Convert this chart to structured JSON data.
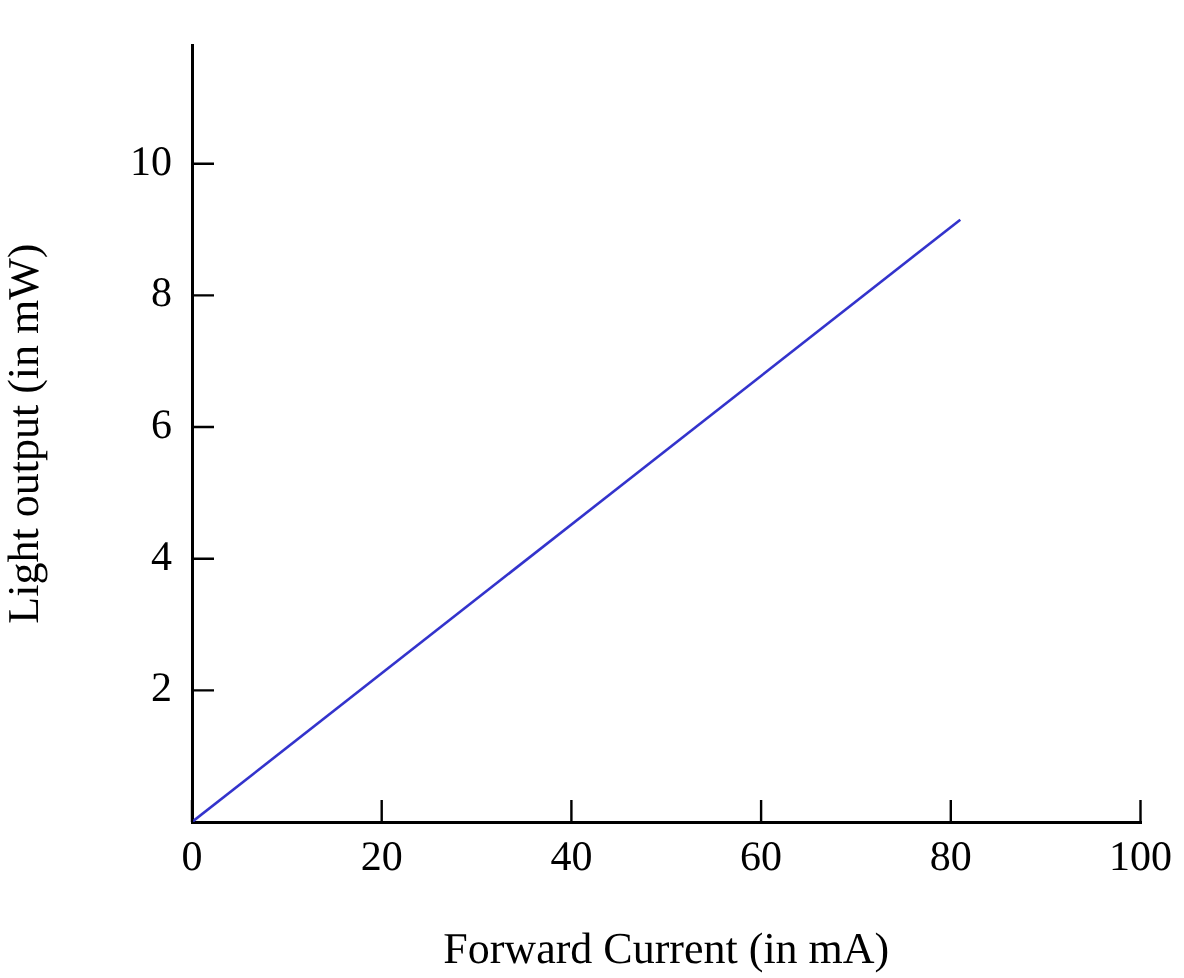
{
  "chart_data": {
    "type": "line",
    "xlabel": "Forward Current (in mA)",
    "ylabel": "Light output (in mW)",
    "x": [
      0,
      81
    ],
    "series": [
      {
        "color": "#3333cc",
        "values": [
          0,
          9.15
        ]
      }
    ],
    "xlim": [
      0,
      100
    ],
    "xticks": [
      0,
      20,
      40,
      60,
      80,
      100
    ],
    "ylim": [
      0,
      11.8
    ],
    "yticks": [
      2,
      4,
      6,
      8,
      10
    ],
    "grid": false,
    "legend": false,
    "marker": "none",
    "line_style": "solid"
  }
}
